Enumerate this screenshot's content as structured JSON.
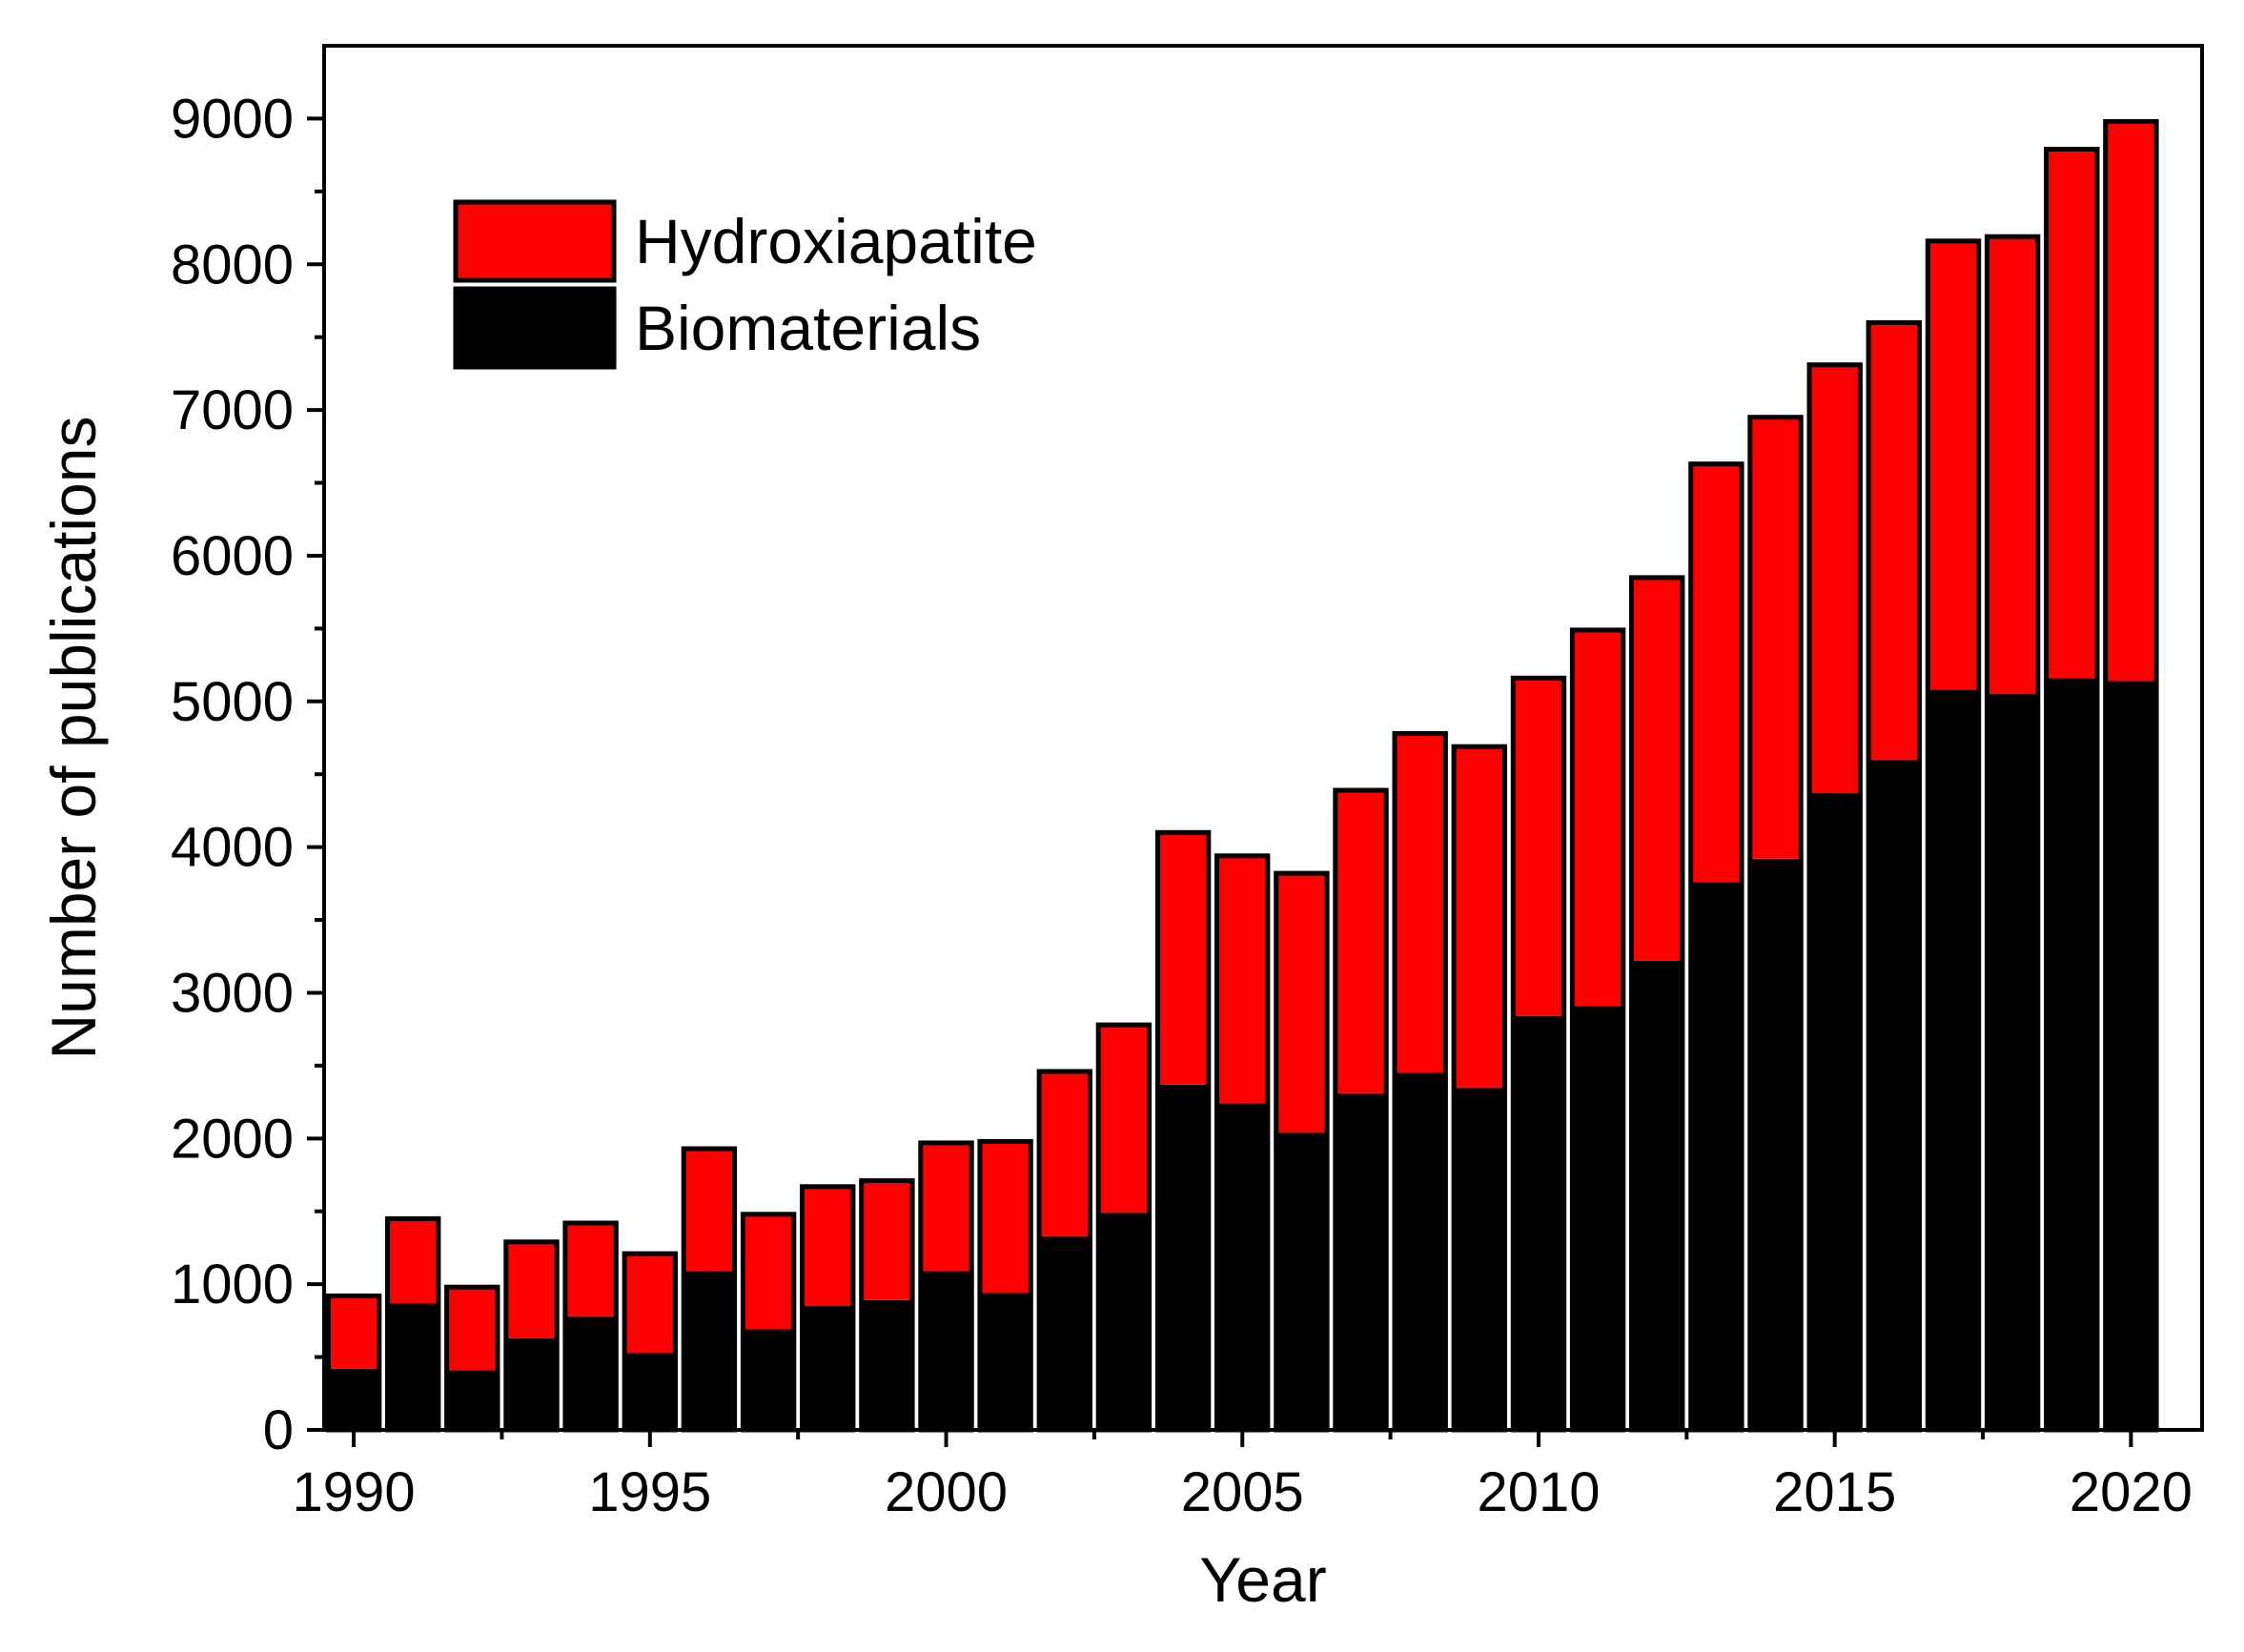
{
  "colors": {
    "hydroxiapatite": "#ff0000",
    "biomaterials": "#000000",
    "axis": "#000000",
    "background": "#ffffff"
  },
  "chart_data": {
    "type": "bar",
    "stacked": true,
    "title": "",
    "xlabel": "Year",
    "ylabel": "Number of publications",
    "ylim": [
      0,
      9500
    ],
    "xlim": [
      1989.5,
      2021.2
    ],
    "legend_position": "top-left",
    "x_ticks": [
      "1990",
      "1995",
      "2000",
      "2005",
      "2010",
      "2015",
      "2020"
    ],
    "y_ticks": [
      "0",
      "1000",
      "2000",
      "3000",
      "4000",
      "5000",
      "6000",
      "7000",
      "8000",
      "9000"
    ],
    "categories": [
      1990,
      1991,
      1992,
      1993,
      1994,
      1995,
      1996,
      1997,
      1998,
      1999,
      2000,
      2001,
      2002,
      2003,
      2004,
      2005,
      2006,
      2007,
      2008,
      2009,
      2010,
      2011,
      2012,
      2013,
      2014,
      2015,
      2016,
      2017,
      2018,
      2019,
      2020
    ],
    "series": [
      {
        "name": "Biomaterials",
        "color_key": "biomaterials",
        "values": [
          420,
          870,
          410,
          630,
          780,
          530,
          1090,
          690,
          850,
          890,
          1090,
          940,
          1330,
          1490,
          2370,
          2240,
          2040,
          2310,
          2450,
          2350,
          2840,
          2910,
          3220,
          3760,
          3920,
          4370,
          4600,
          5080,
          5050,
          5160,
          5140
        ]
      },
      {
        "name": "Hydroxiapatite",
        "color_key": "hydroxiapatite",
        "values": [
          500,
          580,
          570,
          660,
          640,
          680,
          840,
          790,
          820,
          820,
          880,
          1040,
          1130,
          1290,
          1730,
          1700,
          1780,
          2080,
          2330,
          2340,
          2320,
          2580,
          2630,
          2870,
          3030,
          2940,
          3000,
          3080,
          3140,
          3630,
          3840
        ]
      }
    ],
    "legend": [
      {
        "label": "Hydroxiapatite",
        "color_key": "hydroxiapatite"
      },
      {
        "label": "Biomaterials",
        "color_key": "biomaterials"
      }
    ]
  }
}
